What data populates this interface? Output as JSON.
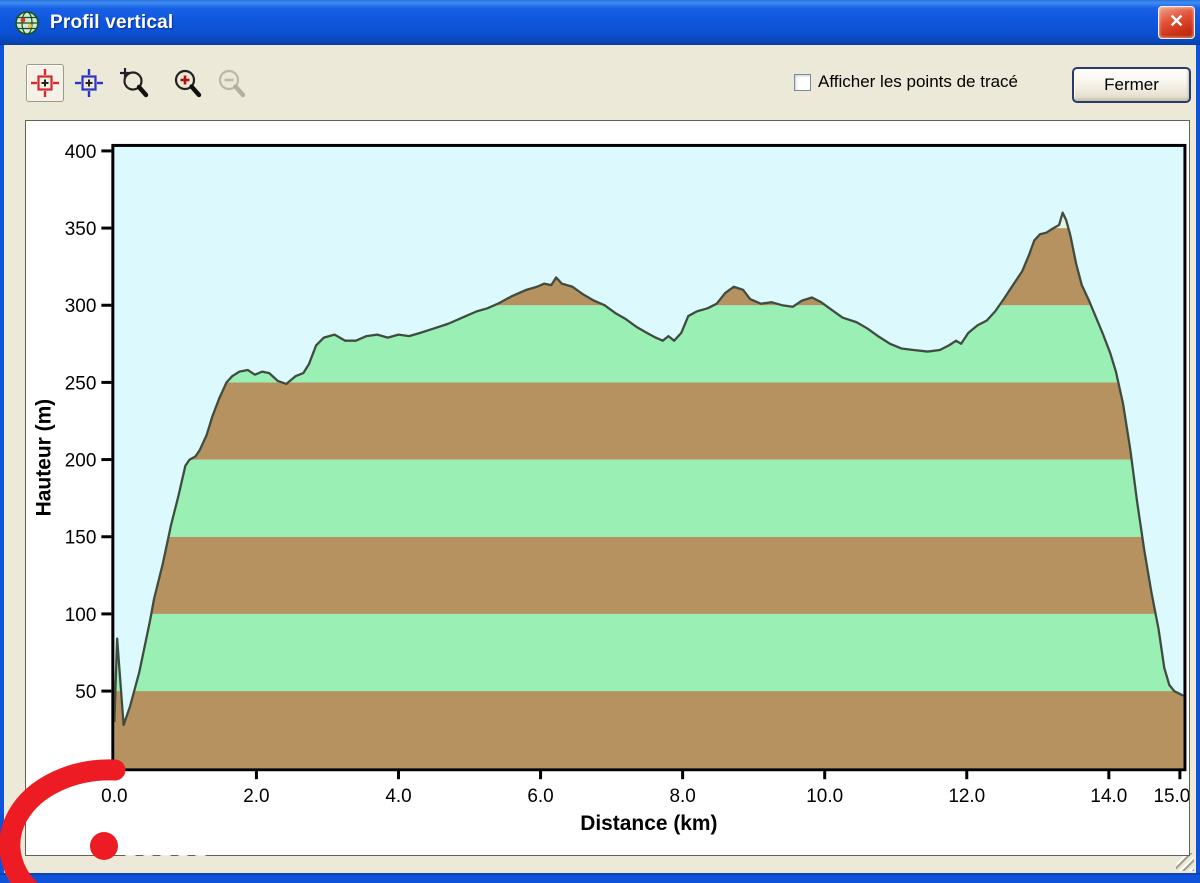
{
  "window": {
    "title": "Profil vertical",
    "close_glyph": "✕"
  },
  "toolbar": {
    "buttons": [
      {
        "id": "center-target-red",
        "selected": true,
        "disabled": false
      },
      {
        "id": "center-target-blue",
        "selected": false,
        "disabled": false
      },
      {
        "id": "zoom-selection",
        "selected": false,
        "disabled": false
      },
      {
        "id": "zoom-in",
        "selected": false,
        "disabled": false
      },
      {
        "id": "zoom-out",
        "selected": false,
        "disabled": true
      }
    ],
    "checkbox": {
      "label": "Afficher les points de tracé",
      "checked": false
    },
    "close_button": "Fermer"
  },
  "chart_data": {
    "type": "area",
    "title": "",
    "xlabel": "Distance   (km)",
    "ylabel": "Hauteur (m)",
    "xlim": [
      0,
      15.05
    ],
    "ylim": [
      0,
      400
    ],
    "x_ticks": [
      0,
      2,
      4,
      6,
      8,
      10,
      12,
      14,
      15
    ],
    "x_tick_labels": [
      "0.0",
      "2.0",
      "4.0",
      "6.0",
      "8.0",
      "10.0",
      "12.0",
      "14.0",
      "15.0"
    ],
    "y_ticks": [
      50,
      100,
      150,
      200,
      250,
      300,
      350,
      400
    ],
    "grid": false,
    "legend": "none",
    "band_step_m": 50,
    "band_colors_bottom_up": [
      "#b5925f",
      "#9aefb4",
      "#b5925f",
      "#9aefb4",
      "#b5925f",
      "#9aefb4",
      "#b5925f",
      "#e2f5e2"
    ],
    "colors": {
      "sky": "#dcfafd",
      "band_brown": "#b5925f",
      "band_green": "#9aefb4",
      "band_pale": "#e2f5e2",
      "outline": "#414c41",
      "frame": "#000000"
    },
    "profile_km_m": [
      [
        0.0,
        30
      ],
      [
        0.04,
        84
      ],
      [
        0.13,
        28
      ],
      [
        0.22,
        40
      ],
      [
        0.35,
        62
      ],
      [
        0.5,
        95
      ],
      [
        0.56,
        110
      ],
      [
        0.68,
        132
      ],
      [
        0.8,
        158
      ],
      [
        0.9,
        176
      ],
      [
        1.0,
        196
      ],
      [
        1.06,
        200
      ],
      [
        1.14,
        202
      ],
      [
        1.2,
        206
      ],
      [
        1.3,
        216
      ],
      [
        1.38,
        228
      ],
      [
        1.48,
        240
      ],
      [
        1.58,
        250
      ],
      [
        1.66,
        254
      ],
      [
        1.76,
        257
      ],
      [
        1.88,
        258
      ],
      [
        1.98,
        255
      ],
      [
        2.08,
        257
      ],
      [
        2.18,
        256
      ],
      [
        2.3,
        251
      ],
      [
        2.42,
        249
      ],
      [
        2.55,
        254
      ],
      [
        2.66,
        256
      ],
      [
        2.74,
        262
      ],
      [
        2.84,
        274
      ],
      [
        2.95,
        279
      ],
      [
        3.1,
        281
      ],
      [
        3.25,
        277
      ],
      [
        3.4,
        277
      ],
      [
        3.55,
        280
      ],
      [
        3.7,
        281
      ],
      [
        3.85,
        279
      ],
      [
        4.0,
        281
      ],
      [
        4.15,
        280
      ],
      [
        4.3,
        282
      ],
      [
        4.5,
        285
      ],
      [
        4.7,
        288
      ],
      [
        4.9,
        292
      ],
      [
        5.1,
        296
      ],
      [
        5.25,
        298
      ],
      [
        5.4,
        301
      ],
      [
        5.6,
        306
      ],
      [
        5.8,
        310
      ],
      [
        5.95,
        312
      ],
      [
        6.05,
        314
      ],
      [
        6.15,
        313
      ],
      [
        6.22,
        318
      ],
      [
        6.3,
        314
      ],
      [
        6.45,
        312
      ],
      [
        6.6,
        307
      ],
      [
        6.75,
        303
      ],
      [
        6.9,
        300
      ],
      [
        7.05,
        295
      ],
      [
        7.2,
        291
      ],
      [
        7.35,
        286
      ],
      [
        7.5,
        282
      ],
      [
        7.62,
        279
      ],
      [
        7.72,
        277
      ],
      [
        7.8,
        280
      ],
      [
        7.88,
        277
      ],
      [
        7.98,
        282
      ],
      [
        8.08,
        293
      ],
      [
        8.2,
        296
      ],
      [
        8.35,
        298
      ],
      [
        8.48,
        301
      ],
      [
        8.6,
        308
      ],
      [
        8.72,
        312
      ],
      [
        8.85,
        310
      ],
      [
        8.95,
        304
      ],
      [
        9.1,
        301
      ],
      [
        9.25,
        302
      ],
      [
        9.4,
        300
      ],
      [
        9.55,
        299
      ],
      [
        9.68,
        303
      ],
      [
        9.82,
        305
      ],
      [
        9.95,
        302
      ],
      [
        10.1,
        297
      ],
      [
        10.25,
        292
      ],
      [
        10.45,
        289
      ],
      [
        10.6,
        285
      ],
      [
        10.75,
        280
      ],
      [
        10.92,
        275
      ],
      [
        11.08,
        272
      ],
      [
        11.25,
        271
      ],
      [
        11.45,
        270
      ],
      [
        11.62,
        271
      ],
      [
        11.75,
        274
      ],
      [
        11.85,
        277
      ],
      [
        11.92,
        275
      ],
      [
        12.02,
        282
      ],
      [
        12.15,
        287
      ],
      [
        12.28,
        290
      ],
      [
        12.4,
        296
      ],
      [
        12.52,
        304
      ],
      [
        12.65,
        313
      ],
      [
        12.78,
        322
      ],
      [
        12.88,
        333
      ],
      [
        12.95,
        342
      ],
      [
        13.03,
        346
      ],
      [
        13.12,
        347
      ],
      [
        13.22,
        350
      ],
      [
        13.3,
        352
      ],
      [
        13.35,
        360
      ],
      [
        13.4,
        355
      ],
      [
        13.46,
        345
      ],
      [
        13.54,
        327
      ],
      [
        13.62,
        313
      ],
      [
        13.72,
        303
      ],
      [
        13.82,
        292
      ],
      [
        13.92,
        281
      ],
      [
        14.02,
        269
      ],
      [
        14.1,
        257
      ],
      [
        14.2,
        236
      ],
      [
        14.3,
        207
      ],
      [
        14.4,
        172
      ],
      [
        14.5,
        141
      ],
      [
        14.6,
        114
      ],
      [
        14.7,
        90
      ],
      [
        14.78,
        65
      ],
      [
        14.85,
        54
      ],
      [
        14.92,
        50
      ],
      [
        15.05,
        47
      ]
    ]
  },
  "watermark": {
    "description": "red arc and red dot overlay at bottom-left with faint white marks",
    "arc_color": "#ed1c24"
  }
}
